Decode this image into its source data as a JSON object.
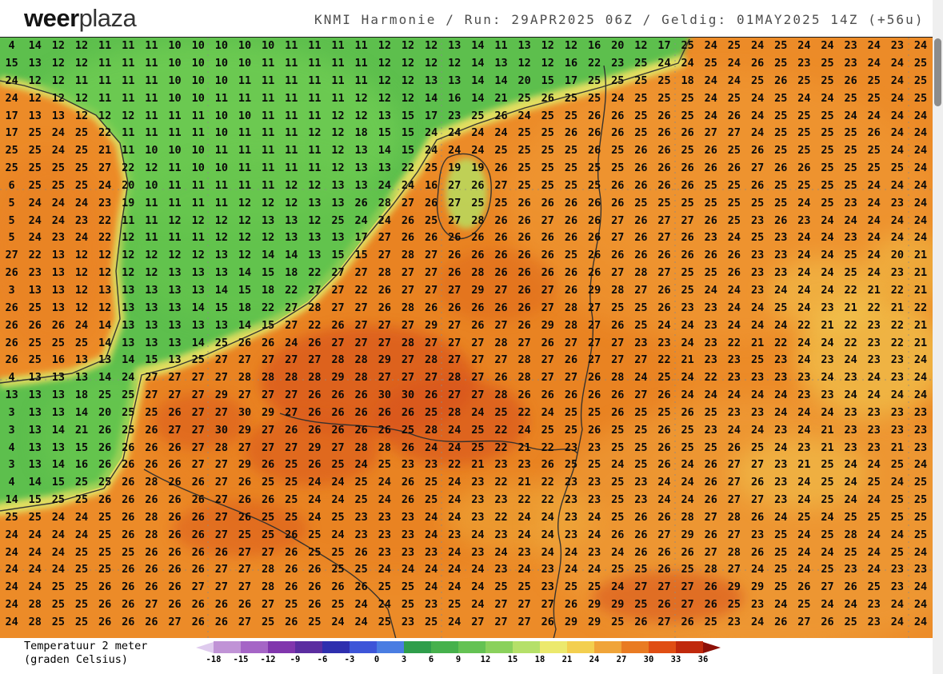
{
  "header": {
    "logo_bold": "weer",
    "logo_light": "plaza",
    "model_run_title": "KNMI Harmonie / Run: 29APR2025 06Z / Geldig: 01MAY2025 14Z (+56u)"
  },
  "map": {
    "temperature_rows": [
      "4 14 12 12 11 11 11 10 10 10 10 10 11 11 11 11 12 12 12 13 14 11 13 12 12 16 20 12 17 25 24 25 24 25 24 24 23 24 23 24",
      "15 13 12 12 11 11 11 10 10 10 10 11 11 11 11 11 12 12 12 12 14 13 12 12 16 22 23 25 24 24 25 24 26 25 23 25 23 24 24 25",
      "24 12 12 11 11 11 11 10 10 10 11 11 11 11 11 11 12 12 13 13 14 14 20 15 17 25 25 25 25 18 24 24 25 26 25 25 26 25 24 25",
      "24 12 12 12 11 11 11 10 10 11 11 11 11 11 11 12 12 12 14 16 14 21 25 26 25 25 24 25 25 25 24 25 24 25 24 24 25 25 24 25",
      "17 13 13 12 12 12 11 11 11 10 10 11 11 11 12 12 13 15 17 23 25 26 24 25 25 26 26 25 26 25 24 26 24 25 25 25 24 24 24 24",
      "17 25 24 25 22 11 11 11 11 10 11 11 11 12 12 18 15 15 24 24 24 24 25 25 26 26 26 25 26 26 27 27 24 25 25 25 25 26 24 24",
      "25 25 24 25 21 11 10 10 10 11 11 11 11 11 12 13 14 15 24 24 24 25 25 25 25 26 25 26 26 25 26 25 26 25 25 25 25 25 24 24",
      "25 25 25 25 27 22 12 11 10 10 11 11 11 11 12 13 13 22 25 19 19 26 25 25 25 25 25 26 26 26 26 26 27 26 26 25 25 25 25 24",
      "6 25 25 25 24 20 10 11 11 11 11 11 12 12 13 13 24 24 16 27 26 27 25 25 25 25 26 26 26 26 25 25 26 25 25 25 25 24 24 24",
      "5 24 24 24 23 19 11 11 11 11 12 12 12 13 13 26 28 27 26 27 25 25 26 26 26 26 26 25 25 25 25 25 25 25 24 25 23 24 23 24",
      "5 24 24 23 22 11 11 12 12 12 12 13 13 12 25 24 24 26 25 27 28 26 26 27 26 26 27 26 27 27 26 25 23 26 23 24 24 24 24 24",
      "5 24 23 24 22 12 11 11 11 12 12 12 13 13 13 17 27 26 26 26 26 26 26 26 26 26 27 26 27 26 23 24 25 23 24 24 23 24 24 24",
      "27 22 13 12 12 12 12 12 12 13 12 14 14 13 15 15 27 28 27 26 26 26 26 26 25 26 26 26 26 26 26 26 23 23 24 24 25 24 20 21",
      "26 23 13 12 12 12 12 13 13 13 14 15 18 22 27 27 28 27 27 26 28 26 26 26 26 26 27 28 27 25 25 26 23 23 24 24 25 24 23 21",
      "3 13 13 12 13 13 13 13 13 14 15 18 22 27 27 22 26 27 27 27 29 27 26 27 26 29 28 27 26 25 24 24 23 24 24 24 22 21 22 21",
      "26 25 13 12 12 13 13 13 14 15 18 22 27 28 27 27 26 28 26 26 26 26 26 27 28 27 25 25 26 23 23 24 24 25 24 23 21 22 21 22",
      "26 26 26 24 14 13 13 13 13 13 14 15 27 22 26 27 27 27 29 27 26 27 26 29 28 27 26 25 24 24 23 24 24 24 22 21 22 23 22 21",
      "26 25 25 25 14 13 13 13 14 25 26 26 24 26 27 27 27 28 27 27 27 28 27 26 27 27 27 23 23 24 23 22 21 22 24 24 22 23 22 21",
      "26 25 16 13 13 14 15 13 25 27 27 27 27 27 28 28 29 27 28 27 27 27 28 27 26 27 27 27 22 21 23 23 25 23 24 23 24 23 23 24",
      "4 13 13 13 14 24 27 27 27 27 28 28 28 28 29 28 27 27 27 28 27 26 28 27 27 26 28 24 25 24 22 23 23 23 23 24 23 24 23 24",
      "13 13 13 18 25 25 27 27 27 29 27 27 27 26 26 26 30 30 26 27 27 28 26 26 26 26 26 27 26 24 24 24 24 24 23 23 24 24 24 24",
      "3 13 13 14 20 25 25 26 27 27 30 29 27 26 26 26 26 26 25 28 24 25 22 24 25 25 26 25 25 26 25 23 23 24 24 24 23 23 23 23",
      "3 13 14 21 26 25 26 27 27 30 29 27 26 26 26 26 26 25 28 24 25 22 24 25 25 26 25 25 26 25 23 24 24 23 24 21 23 23 23 23",
      "4 13 13 15 26 26 26 26 27 28 27 27 27 29 27 28 28 26 24 24 25 22 21 22 23 23 25 25 26 25 25 26 25 24 23 21 23 23 21 23",
      "3 13 14 16 26 26 26 26 27 27 29 26 25 26 25 24 25 23 23 22 21 23 23 26 25 25 24 25 26 24 26 27 27 23 21 25 24 24 25 24",
      "4 14 15 25 25 26 28 26 26 27 26 25 25 24 24 25 24 26 25 24 23 22 21 22 23 23 25 23 24 24 26 27 26 23 24 25 24 25 24 25",
      "14 15 25 25 26 26 26 26 26 27 26 26 25 24 24 25 24 26 25 24 23 23 22 22 23 23 25 23 24 24 26 27 27 23 24 25 24 24 25 25",
      "25 25 24 24 25 26 28 26 26 27 26 25 25 24 25 23 23 23 24 24 23 22 24 24 23 24 25 26 26 28 27 28 26 24 25 24 25 25 25 25",
      "24 24 24 24 25 26 28 26 26 27 25 25 26 25 24 23 23 23 24 23 24 23 24 24 23 24 26 26 27 29 26 27 23 25 24 25 28 24 24 25",
      "24 24 24 25 25 25 26 26 26 26 27 27 26 25 25 26 23 23 23 24 23 24 23 24 24 23 24 26 26 26 27 28 26 25 24 24 25 24 25 24",
      "24 24 24 25 25 26 26 26 26 27 27 28 26 26 25 25 24 24 24 24 24 23 24 23 24 24 25 25 26 25 28 27 24 25 24 25 23 24 23 23",
      "24 24 25 25 26 26 26 26 27 27 27 28 26 26 26 26 25 25 24 24 24 25 25 23 25 25 24 27 27 27 26 29 29 25 26 27 26 25 23 24",
      "24 28 25 25 26 26 27 26 26 26 26 27 25 26 25 24 24 25 23 25 24 27 27 27 26 29 29 25 26 27 26 25 23 24 25 24 24 23 24 24",
      "24 28 25 25 26 26 26 27 26 26 27 25 26 25 24 24 25 23 25 24 27 27 27 26 29 29 25 26 27 26 25 23 24 26 27 26 25 23 24 24"
    ]
  },
  "legend": {
    "label_line1": "Temperatuur 2 meter",
    "label_line2": "(graden Celsius)",
    "ticks": [
      "-18",
      "-15",
      "-12",
      "-9",
      "-6",
      "-3",
      "0",
      "3",
      "6",
      "9",
      "12",
      "15",
      "18",
      "21",
      "24",
      "27",
      "30",
      "33",
      "36"
    ],
    "segment_colors": [
      "#c093d6",
      "#a565c6",
      "#8136ad",
      "#5b2da0",
      "#2e2fae",
      "#3d55d8",
      "#4a7de2",
      "#2f9e4b",
      "#46b14c",
      "#64c253",
      "#8ad15c",
      "#b5e069",
      "#ece96d",
      "#f3cf4f",
      "#f0a439",
      "#e97b22",
      "#e04e13",
      "#c0290c"
    ],
    "arrow_left_color": "#dfcbee",
    "arrow_right_color": "#8d1007"
  }
}
